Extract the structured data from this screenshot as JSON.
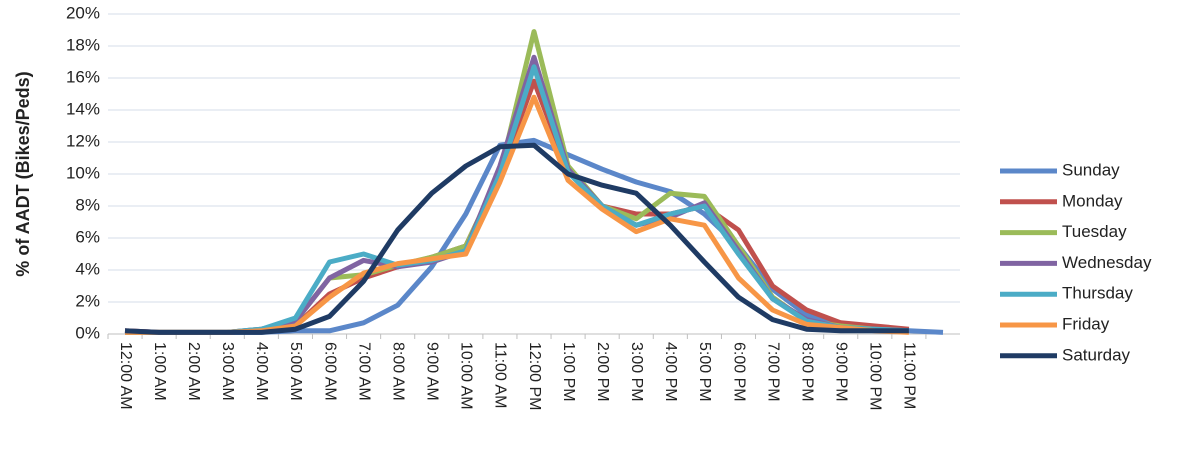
{
  "chart_data": {
    "type": "line",
    "y_label": "% of AADT (Bikes/Peds)",
    "categories": [
      "12:00 AM",
      "1:00 AM",
      "2:00 AM",
      "3:00 AM",
      "4:00 AM",
      "5:00 AM",
      "6:00 AM",
      "7:00 AM",
      "8:00 AM",
      "9:00 AM",
      "10:00 AM",
      "11:00 AM",
      "12:00 PM",
      "1:00 PM",
      "2:00 PM",
      "3:00 PM",
      "4:00 PM",
      "5:00 PM",
      "6:00 PM",
      "7:00 PM",
      "8:00 PM",
      "9:00 PM",
      "10:00 PM",
      "11:00 PM",
      null
    ],
    "ylim": [
      0,
      20
    ],
    "yticks": [
      {
        "value": 0,
        "label": "0%"
      },
      {
        "value": 2,
        "label": "2%"
      },
      {
        "value": 4,
        "label": "4%"
      },
      {
        "value": 6,
        "label": "6%"
      },
      {
        "value": 8,
        "label": "8%"
      },
      {
        "value": 10,
        "label": "10%"
      },
      {
        "value": 12,
        "label": "12%"
      },
      {
        "value": 14,
        "label": "14%"
      },
      {
        "value": 16,
        "label": "16%"
      },
      {
        "value": 18,
        "label": "18%"
      },
      {
        "value": 20,
        "label": "20%"
      }
    ],
    "grid": true,
    "legend": "right",
    "series": [
      {
        "name": "Sunday",
        "color": "#5b87c9",
        "values": [
          0.2,
          0.1,
          0.1,
          0.1,
          0.1,
          0.2,
          0.2,
          0.7,
          1.8,
          4.2,
          7.5,
          11.8,
          12.1,
          11.2,
          10.3,
          9.5,
          8.9,
          7.5,
          5.5,
          2.8,
          1.2,
          0.6,
          0.3,
          0.2,
          0.1
        ]
      },
      {
        "name": "Monday",
        "color": "#c0504d",
        "values": [
          0.2,
          0.1,
          0.1,
          0.1,
          0.2,
          0.5,
          2.5,
          3.5,
          4.2,
          4.8,
          5.5,
          10,
          15.8,
          10.2,
          8,
          7.5,
          7.5,
          8,
          6.5,
          3,
          1.5,
          0.7,
          0.5,
          0.3,
          null
        ]
      },
      {
        "name": "Tuesday",
        "color": "#9bbb59",
        "values": [
          0.1,
          0.1,
          0.1,
          0.1,
          0.3,
          0.8,
          3.5,
          3.7,
          4.3,
          4.8,
          5.5,
          10,
          18.9,
          10.5,
          8,
          7.2,
          8.8,
          8.6,
          5.5,
          2.3,
          0.8,
          0.5,
          0.3,
          0.2,
          null
        ]
      },
      {
        "name": "Wednesday",
        "color": "#8064a2",
        "values": [
          0.1,
          0.1,
          0.1,
          0.1,
          0.3,
          0.8,
          3.5,
          4.6,
          4.2,
          4.5,
          5.2,
          10.5,
          17.3,
          10.3,
          8,
          6.8,
          7.3,
          8.2,
          5.2,
          2.2,
          0.9,
          0.4,
          0.3,
          0.2,
          null
        ]
      },
      {
        "name": "Thursday",
        "color": "#4bacc6",
        "values": [
          0.1,
          0.1,
          0.1,
          0.1,
          0.3,
          1.0,
          4.5,
          5,
          4.3,
          4.6,
          5.2,
          10,
          16.7,
          10.1,
          8,
          6.8,
          7.5,
          8,
          5,
          2.2,
          0.8,
          0.4,
          0.3,
          0.2,
          null
        ]
      },
      {
        "name": "Friday",
        "color": "#f79646",
        "values": [
          0.1,
          0.1,
          0.1,
          0.1,
          0.2,
          0.5,
          2.3,
          3.8,
          4.4,
          4.7,
          5,
          9.5,
          14.8,
          9.6,
          7.8,
          6.4,
          7.2,
          6.8,
          3.5,
          1.5,
          0.6,
          0.4,
          0.2,
          0.1,
          null
        ]
      },
      {
        "name": "Saturday",
        "color": "#1f3b64",
        "values": [
          0.2,
          0.1,
          0.1,
          0.1,
          0.1,
          0.3,
          1.1,
          3.3,
          6.5,
          8.8,
          10.5,
          11.7,
          11.8,
          10,
          9.3,
          8.8,
          6.8,
          4.5,
          2.3,
          0.9,
          0.3,
          0.2,
          0.2,
          0.2,
          null
        ]
      }
    ]
  }
}
